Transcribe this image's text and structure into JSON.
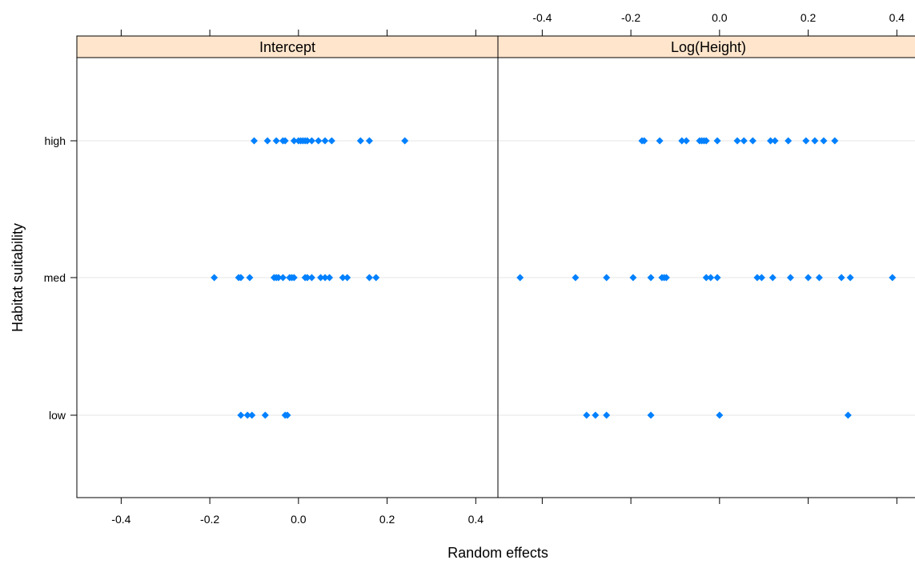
{
  "chart_data": {
    "type": "scatter",
    "xlabel": "Random effects",
    "ylabel": "Habitat suitability",
    "categories": [
      "low",
      "med",
      "high"
    ],
    "xlim": [
      -0.5,
      0.45
    ],
    "xticks": [
      -0.4,
      -0.2,
      0.0,
      0.2,
      0.4
    ],
    "xtick_labels": [
      "-0.4",
      "-0.2",
      "0.0",
      "0.2",
      "0.4"
    ],
    "grid": "horizontal",
    "point_color": "#0080ff",
    "strip_color": "#ffe5cc",
    "panels": [
      {
        "name": "Intercept",
        "series": [
          {
            "category": "high",
            "x": [
              -0.1,
              -0.07,
              -0.05,
              -0.035,
              -0.03,
              -0.01,
              0.0,
              0.005,
              0.01,
              0.015,
              0.02,
              0.03,
              0.045,
              0.06,
              0.075,
              0.14,
              0.16,
              0.24
            ]
          },
          {
            "category": "med",
            "x": [
              -0.19,
              -0.135,
              -0.13,
              -0.11,
              -0.055,
              -0.05,
              -0.045,
              -0.035,
              -0.02,
              -0.015,
              -0.01,
              0.015,
              0.02,
              0.03,
              0.05,
              0.06,
              0.07,
              0.1,
              0.11,
              0.16,
              0.175
            ]
          },
          {
            "category": "low",
            "x": [
              -0.13,
              -0.115,
              -0.105,
              -0.075,
              -0.03,
              -0.025
            ]
          }
        ]
      },
      {
        "name": "Log(Height)",
        "series": [
          {
            "category": "high",
            "x": [
              -0.175,
              -0.17,
              -0.135,
              -0.085,
              -0.075,
              -0.045,
              -0.04,
              -0.035,
              -0.03,
              -0.005,
              0.04,
              0.055,
              0.075,
              0.115,
              0.125,
              0.155,
              0.195,
              0.215,
              0.235,
              0.26
            ]
          },
          {
            "category": "med",
            "x": [
              -0.45,
              -0.325,
              -0.255,
              -0.195,
              -0.155,
              -0.13,
              -0.125,
              -0.12,
              -0.03,
              -0.02,
              -0.005,
              0.085,
              0.095,
              0.12,
              0.16,
              0.2,
              0.225,
              0.275,
              0.295,
              0.39
            ]
          },
          {
            "category": "low",
            "x": [
              -0.3,
              -0.28,
              -0.255,
              -0.155,
              0.0,
              0.29
            ]
          }
        ]
      }
    ]
  }
}
